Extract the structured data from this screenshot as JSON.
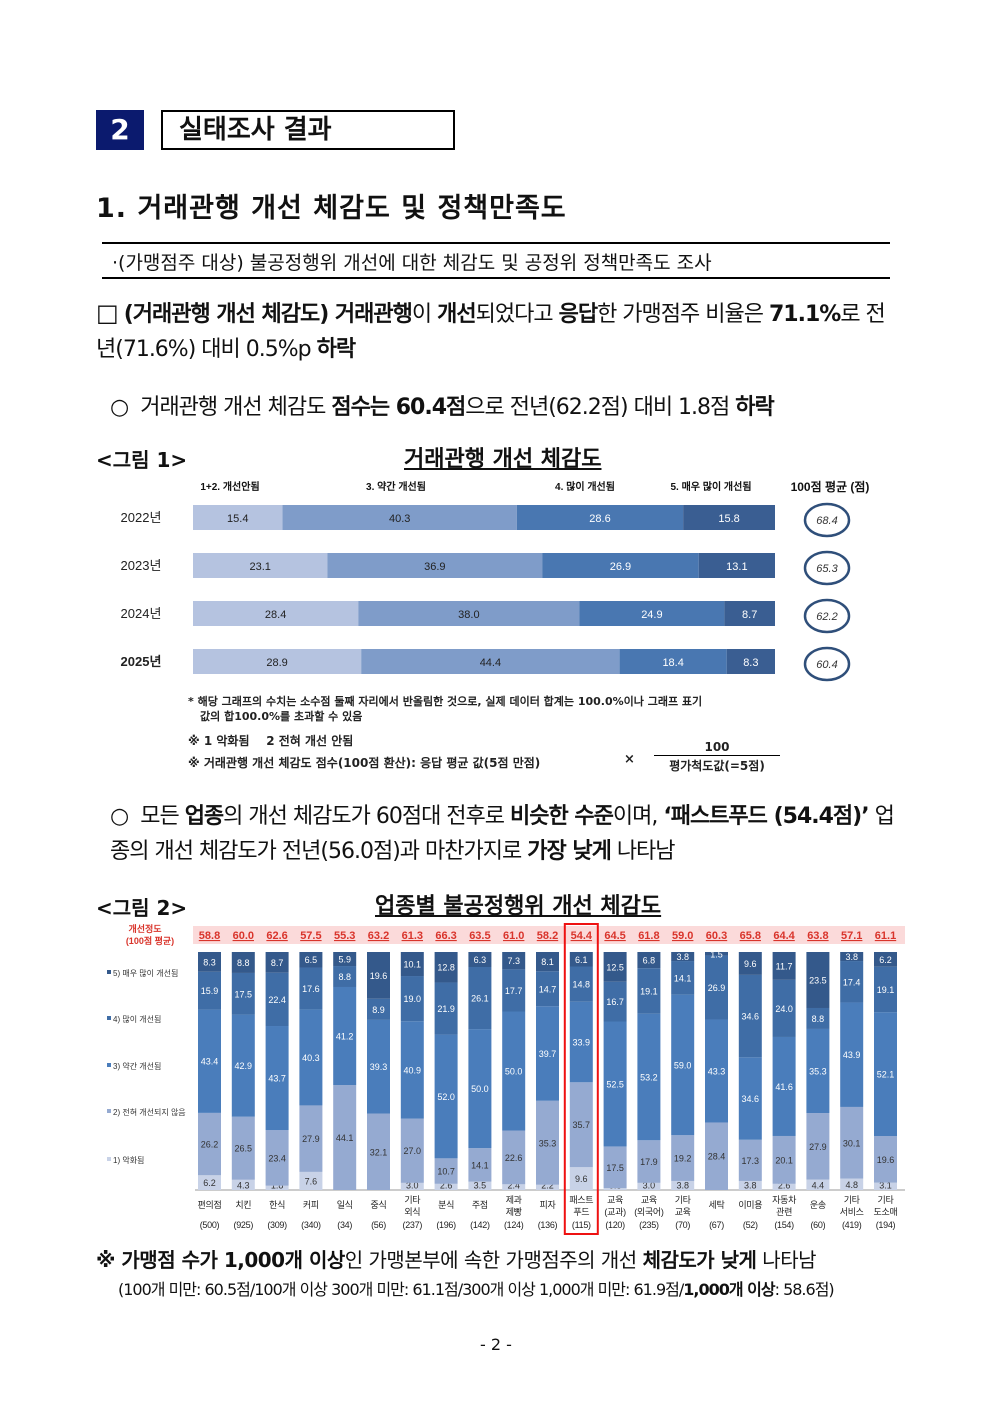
{
  "section": {
    "number": "2",
    "title": "실태조사 결과"
  },
  "heading": "1. 거래관행 개선 체감도 및 정책만족도",
  "summary": "·(가맹점주 대상) 불공정행위 개선에 대한 체감도 및 공정위 정책만족도 조사",
  "para1": {
    "marker": "□",
    "runs": [
      {
        "t": "(거래관행 개선 체감도) 거래관행",
        "b": true
      },
      {
        "t": "이 ",
        "b": false
      },
      {
        "t": "개선",
        "b": true
      },
      {
        "t": "되었다고 ",
        "b": false
      },
      {
        "t": "응답",
        "b": true
      },
      {
        "t": "한 가맹점주 비율은 ",
        "b": false
      },
      {
        "t": "71.1%",
        "b": true
      },
      {
        "t": "로 전년(71.6%) 대비 0.5%p ",
        "b": false
      },
      {
        "t": "하락",
        "b": true
      }
    ]
  },
  "para2": {
    "marker": "○",
    "runs": [
      {
        "t": "거래관행 개선 체감도 ",
        "b": false
      },
      {
        "t": "점수는 60.4점",
        "b": true
      },
      {
        "t": "으로 전년(62.2점) 대비 1.8점 ",
        "b": false
      },
      {
        "t": "하락",
        "b": true
      }
    ]
  },
  "figure1": {
    "label": "<그림 1>",
    "title": "거래관행 개선 체감도"
  },
  "chart_data": [
    {
      "type": "bar",
      "orientation": "horizontal-stacked",
      "title": "거래관행 개선 체감도",
      "legend": [
        "1+2. 개선안됨",
        "3. 약간 개선됨",
        "4. 많이 개선됨",
        "5. 매우 많이 개선됨"
      ],
      "avg_header": "100점 평균 (점)",
      "categories": [
        "2022년",
        "2023년",
        "2024년",
        "2025년"
      ],
      "series": [
        {
          "name": "1+2. 개선안됨",
          "values": [
            15.4,
            23.1,
            28.4,
            28.9
          ]
        },
        {
          "name": "3. 약간 개선됨",
          "values": [
            40.3,
            36.9,
            38.0,
            44.4
          ]
        },
        {
          "name": "4. 많이 개선됨",
          "values": [
            28.6,
            26.9,
            24.9,
            18.4
          ]
        },
        {
          "name": "5. 매우 많이 개선됨",
          "values": [
            15.8,
            13.1,
            8.7,
            8.3
          ]
        }
      ],
      "averages": [
        "68.4",
        "65.3",
        "62.2",
        "60.4"
      ],
      "colors": [
        "#b5c3e0",
        "#7f9cc9",
        "#4977b1",
        "#3a5e92"
      ]
    },
    {
      "type": "bar",
      "orientation": "vertical-stacked",
      "title": "업종별 불공정행위 개선 체감도",
      "score_header": [
        "개선정도",
        "(100점 평균)"
      ],
      "legend": [
        "5) 매우 많이 개선됨",
        "4) 많이 개선됨",
        "3) 약간 개선됨",
        "2) 전혀 개선되지 않음",
        "1) 악화됨"
      ],
      "categories": [
        [
          "편의점",
          "",
          "(500)"
        ],
        [
          "치킨",
          "",
          "(925)"
        ],
        [
          "한식",
          "",
          "(309)"
        ],
        [
          "커피",
          "",
          "(340)"
        ],
        [
          "일식",
          "",
          "(34)"
        ],
        [
          "중식",
          "",
          "(56)"
        ],
        [
          "기타",
          "외식",
          "(237)"
        ],
        [
          "분식",
          "",
          "(196)"
        ],
        [
          "주점",
          "",
          "(142)"
        ],
        [
          "제과",
          "제빵",
          "(124)"
        ],
        [
          "피자",
          "",
          "(136)"
        ],
        [
          "패스트",
          "푸드",
          "(115)"
        ],
        [
          "교육",
          "(교과)",
          "(120)"
        ],
        [
          "교육",
          "(외국어)",
          "(235)"
        ],
        [
          "기타",
          "교육",
          "(70)"
        ],
        [
          "세탁",
          "",
          "(67)"
        ],
        [
          "이미용",
          "",
          "(52)"
        ],
        [
          "자동차",
          "관련",
          "(154)"
        ],
        [
          "운송",
          "",
          "(60)"
        ],
        [
          "기타",
          "서비스",
          "(419)"
        ],
        [
          "기타",
          "도소매",
          "(194)"
        ]
      ],
      "scores": [
        "58.8",
        "60.0",
        "62.6",
        "57.5",
        "55.3",
        "63.2",
        "61.3",
        "66.3",
        "63.5",
        "61.0",
        "58.2",
        "54.4",
        "64.5",
        "61.8",
        "59.0",
        "60.3",
        "65.8",
        "64.4",
        "63.8",
        "57.1",
        "61.1"
      ],
      "series": [
        {
          "name": "1) 악화됨",
          "values": [
            6.2,
            4.3,
            1.8,
            7.6,
            0,
            0,
            3.0,
            2.6,
            3.5,
            2.4,
            2.2,
            9.6,
            0.8,
            3.0,
            3.8,
            0,
            3.8,
            2.6,
            4.4,
            4.8,
            3.1
          ]
        },
        {
          "name": "2) 전혀 개선되지 않음",
          "values": [
            26.2,
            26.5,
            23.4,
            27.9,
            44.1,
            32.1,
            27.0,
            10.7,
            14.1,
            22.6,
            35.3,
            35.7,
            17.5,
            17.9,
            19.2,
            28.4,
            17.3,
            20.1,
            27.9,
            30.1,
            19.6
          ]
        },
        {
          "name": "3) 약간 개선됨",
          "values": [
            43.4,
            42.9,
            43.7,
            40.3,
            41.2,
            39.3,
            40.9,
            52.0,
            50.0,
            50.0,
            39.7,
            33.9,
            52.5,
            53.2,
            59.0,
            43.3,
            34.6,
            41.6,
            35.3,
            43.9,
            52.1
          ]
        },
        {
          "name": "4) 많이 개선됨",
          "values": [
            15.9,
            17.5,
            22.4,
            17.6,
            8.8,
            8.9,
            19.0,
            21.9,
            26.1,
            17.7,
            14.7,
            14.8,
            16.7,
            19.1,
            14.1,
            26.9,
            34.6,
            24.0,
            8.8,
            17.4,
            19.1
          ]
        },
        {
          "name": "5) 매우 많이 개선됨",
          "values": [
            8.3,
            8.8,
            8.7,
            6.5,
            5.9,
            19.6,
            10.1,
            12.8,
            6.3,
            7.3,
            8.1,
            6.1,
            12.5,
            6.8,
            3.8,
            1.5,
            9.6,
            11.7,
            23.5,
            3.8,
            6.2
          ]
        }
      ],
      "highlight": "패스트푸드",
      "colors": [
        "#c8d2e7",
        "#95aad1",
        "#4a7dbb",
        "#3f6da6",
        "#34598b"
      ],
      "score_color": "#d9342b"
    }
  ],
  "figure1_notes": {
    "note1_line1": "* 해당 그래프의 수치는 소수점 둘째 자리에서 반올림한 것으로, 실제 데이터 합계는 100.0%이나 그래프 표기",
    "note1_line2": "값의 합100.0%를 초과할 수 있음",
    "note2": "※ 1 악화됨    2 전혀 개선 안됨",
    "note3": "※ 거래관행 개선 체감도 점수(100점 환산): 응답 평균 값(5점 만점)",
    "times": "×",
    "frac_num": "100",
    "frac_den": "평가척도값(=5점)"
  },
  "para3": {
    "marker": "○",
    "runs": [
      {
        "t": "모든 ",
        "b": false
      },
      {
        "t": "업종",
        "b": true
      },
      {
        "t": "의 개선 체감도가 60점대 전후로 ",
        "b": false
      },
      {
        "t": "비슷한 수준",
        "b": true
      },
      {
        "t": "이며, ",
        "b": false
      },
      {
        "t": "‘패스트푸드 (54.4점)’",
        "b": true
      },
      {
        "t": " 업종의 개선 체감도가 전년(56.0점)과 마찬가지로 ",
        "b": false
      },
      {
        "t": "가장 낮게",
        "b": true
      },
      {
        "t": " 나타남",
        "b": false
      }
    ]
  },
  "figure2": {
    "label": "<그림 2>",
    "title": "업종별 불공정행위 개선 체감도"
  },
  "bottom_note": {
    "runs": [
      {
        "t": "※ 가맹점 수가 1,000개 이상",
        "b": true
      },
      {
        "t": "인 가맹본부에 속한 가맹점주의 개선 ",
        "b": false
      },
      {
        "t": "체감도가 낮게",
        "b": true
      },
      {
        "t": " 나타남",
        "b": false
      }
    ],
    "detail_runs": [
      {
        "t": "(100개 미만: 60.5점/100개 이상 300개 미만: 61.1점/300개 이상 1,000개 미만: 61.9점/",
        "b": false
      },
      {
        "t": "1,000개 이상",
        "b": true
      },
      {
        "t": ": 58.6점)",
        "b": false
      }
    ]
  },
  "page_number": "- 2 -"
}
